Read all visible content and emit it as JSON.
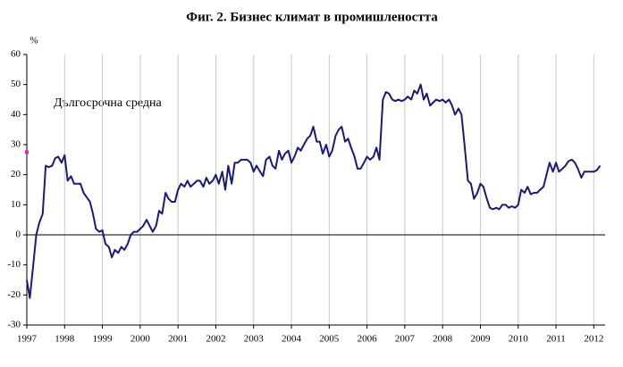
{
  "chart_data": {
    "type": "line",
    "title": "Фиг. 2. Бизнес климат в промишлеността",
    "y_label": "%",
    "annotation": "Дългосрочна средна",
    "average_marker": {
      "x": 1997,
      "value": 27.5,
      "color": "#e020c0"
    },
    "color": "#1a1a78",
    "grid": true,
    "xlim": [
      1997,
      2012.3
    ],
    "xticks": [
      1997,
      1998,
      1999,
      2000,
      2001,
      2002,
      2003,
      2004,
      2005,
      2006,
      2007,
      2008,
      2009,
      2010,
      2011,
      2012
    ],
    "ylim": [
      -30,
      60
    ],
    "yticks": [
      -30,
      -20,
      -10,
      0,
      10,
      20,
      30,
      40,
      50,
      60
    ],
    "x": [
      1997.0,
      1997.08,
      1997.17,
      1997.25,
      1997.33,
      1997.42,
      1997.5,
      1997.58,
      1997.67,
      1997.75,
      1997.83,
      1997.92,
      1998.0,
      1998.08,
      1998.17,
      1998.25,
      1998.42,
      1998.5,
      1998.67,
      1998.75,
      1998.83,
      1998.92,
      1999.0,
      1999.08,
      1999.17,
      1999.25,
      1999.33,
      1999.42,
      1999.5,
      1999.58,
      1999.67,
      1999.75,
      1999.83,
      1999.92,
      2000.0,
      2000.08,
      2000.17,
      2000.25,
      2000.33,
      2000.42,
      2000.5,
      2000.58,
      2000.67,
      2000.75,
      2000.83,
      2000.92,
      2001.0,
      2001.08,
      2001.17,
      2001.25,
      2001.33,
      2001.42,
      2001.5,
      2001.58,
      2001.67,
      2001.75,
      2001.83,
      2001.92,
      2002.0,
      2002.08,
      2002.17,
      2002.25,
      2002.33,
      2002.42,
      2002.5,
      2002.58,
      2002.67,
      2002.75,
      2002.83,
      2002.92,
      2003.0,
      2003.08,
      2003.17,
      2003.25,
      2003.33,
      2003.42,
      2003.5,
      2003.58,
      2003.67,
      2003.75,
      2003.83,
      2003.92,
      2004.0,
      2004.08,
      2004.17,
      2004.25,
      2004.33,
      2004.42,
      2004.5,
      2004.58,
      2004.67,
      2004.75,
      2004.83,
      2004.92,
      2005.0,
      2005.08,
      2005.17,
      2005.25,
      2005.33,
      2005.42,
      2005.5,
      2005.58,
      2005.67,
      2005.75,
      2005.83,
      2005.92,
      2006.0,
      2006.08,
      2006.17,
      2006.25,
      2006.33,
      2006.42,
      2006.5,
      2006.58,
      2006.67,
      2006.75,
      2006.83,
      2006.92,
      2007.0,
      2007.08,
      2007.17,
      2007.25,
      2007.33,
      2007.42,
      2007.5,
      2007.58,
      2007.67,
      2007.75,
      2007.83,
      2007.92,
      2008.0,
      2008.08,
      2008.17,
      2008.25,
      2008.33,
      2008.42,
      2008.5,
      2008.58,
      2008.67,
      2008.75,
      2008.83,
      2008.92,
      2009.0,
      2009.08,
      2009.17,
      2009.25,
      2009.33,
      2009.42,
      2009.5,
      2009.58,
      2009.67,
      2009.75,
      2009.83,
      2009.92,
      2010.0,
      2010.08,
      2010.17,
      2010.25,
      2010.33,
      2010.42,
      2010.5,
      2010.58,
      2010.67,
      2010.75,
      2010.83,
      2010.92,
      2011.0,
      2011.08,
      2011.17,
      2011.25,
      2011.33,
      2011.42,
      2011.5,
      2011.58,
      2011.67,
      2011.75,
      2011.83,
      2011.92,
      2012.0,
      2012.08,
      2012.17
    ],
    "values": [
      -15,
      -21,
      -10,
      0,
      4,
      7,
      23,
      22.5,
      23,
      25.5,
      26,
      24,
      26.5,
      18,
      19.5,
      17,
      17,
      14,
      11,
      7,
      2,
      1,
      1.5,
      -3,
      -4,
      -7.5,
      -5,
      -6,
      -4,
      -5,
      -3,
      0,
      1,
      1,
      2,
      3,
      5,
      3,
      1,
      3,
      8,
      7,
      14,
      12,
      11,
      11,
      15,
      17,
      16,
      18,
      16,
      17,
      18,
      18,
      16,
      19,
      17,
      18,
      20,
      17,
      21,
      15,
      23,
      17,
      24,
      24,
      25,
      25,
      25,
      24,
      21,
      23,
      21,
      19.5,
      25,
      26,
      23,
      22,
      28,
      25,
      27,
      28,
      24,
      26,
      29,
      28,
      30,
      32,
      33,
      36,
      31,
      31,
      27,
      30,
      26,
      28,
      33,
      35,
      36,
      31,
      32,
      29,
      26,
      22,
      22,
      24,
      26,
      25,
      26,
      29,
      25,
      45,
      47.5,
      47,
      45,
      44.5,
      45,
      44.5,
      45,
      46,
      45,
      48,
      47,
      50,
      45,
      47,
      43,
      44,
      45,
      44.5,
      45,
      44,
      45,
      43,
      40,
      42,
      40,
      30,
      18,
      17,
      12,
      14,
      17,
      16,
      12,
      9,
      8.5,
      9,
      8.5,
      10,
      10,
      9,
      9.5,
      9,
      10,
      15,
      14,
      16,
      13.5,
      14,
      14,
      15,
      16,
      20,
      24,
      21,
      24,
      21,
      22,
      23,
      24.5,
      25,
      24,
      22,
      19,
      21,
      21,
      21,
      21,
      21.5,
      23
    ]
  }
}
